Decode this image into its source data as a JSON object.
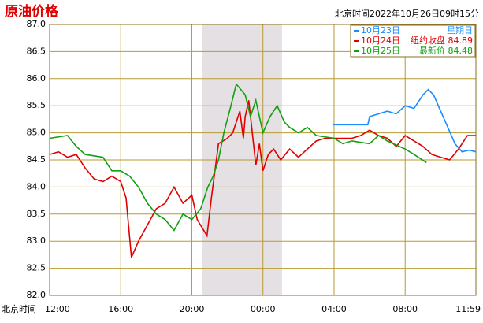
{
  "chart_data": {
    "type": "line",
    "title": "原油价格",
    "subtitle": "北京时间2022年10月26日09时15分",
    "x_label": "北京时间",
    "xlim": [
      0,
      23.98
    ],
    "xticks": [
      {
        "value": 0,
        "label": "12:00"
      },
      {
        "value": 4,
        "label": "16:00"
      },
      {
        "value": 8,
        "label": "20:00"
      },
      {
        "value": 12,
        "label": "00:00"
      },
      {
        "value": 16,
        "label": "04:00"
      },
      {
        "value": 20,
        "label": "08:00"
      },
      {
        "value": 23.98,
        "label": "11:59"
      }
    ],
    "ylim": [
      82,
      87
    ],
    "yticks": [
      {
        "value": 82,
        "label": "82.0"
      },
      82.5,
      {
        "value": 83,
        "label": "83.0"
      },
      83.5,
      {
        "value": 84,
        "label": "84.0"
      },
      84.5,
      {
        "value": 85,
        "label": "85.0"
      },
      85.5,
      {
        "value": 86,
        "label": "86.0"
      },
      86.5,
      {
        "value": 87,
        "label": "87.0"
      }
    ],
    "grid": true,
    "shaded_x": [
      8.58,
      13.07
    ],
    "legend": "upper right",
    "series": [
      {
        "name": "10月23日",
        "note": "星期日",
        "color": "#1a8cff",
        "x": [
          15.95,
          17.9,
          18.0,
          18.5,
          19.0,
          19.5,
          20.0,
          20.5,
          21.0,
          21.3,
          21.6,
          22.0,
          22.4,
          22.8,
          23.2,
          23.6,
          23.98
        ],
        "values": [
          85.15,
          85.15,
          85.3,
          85.35,
          85.4,
          85.35,
          85.5,
          85.45,
          85.7,
          85.8,
          85.7,
          85.4,
          85.1,
          84.8,
          84.65,
          84.68,
          84.65
        ]
      },
      {
        "name": "10月24日",
        "note": "纽约收盘 84.89",
        "color": "#e00000",
        "x": [
          0,
          0.5,
          1,
          1.5,
          2,
          2.5,
          3,
          3.5,
          4,
          4.3,
          4.6,
          5,
          5.5,
          6,
          6.5,
          7,
          7.5,
          8,
          8.3,
          8.85,
          9.1,
          9.5,
          10,
          10.3,
          10.7,
          10.9,
          11,
          11.2,
          11.4,
          11.6,
          11.8,
          12,
          12.3,
          12.6,
          13,
          13.5,
          14,
          14.5,
          15,
          15.5,
          16,
          17,
          17.5,
          18,
          18.5,
          19,
          19.5,
          20,
          20.5,
          21,
          21.5,
          22,
          22.5,
          23,
          23.5,
          23.98
        ],
        "values": [
          84.6,
          84.65,
          84.55,
          84.6,
          84.35,
          84.15,
          84.1,
          84.2,
          84.1,
          83.8,
          82.7,
          83.0,
          83.3,
          83.6,
          83.7,
          84.0,
          83.7,
          83.85,
          83.4,
          83.1,
          83.8,
          84.8,
          84.9,
          85.0,
          85.4,
          84.9,
          85.3,
          85.6,
          85.0,
          84.4,
          84.8,
          84.3,
          84.6,
          84.7,
          84.5,
          84.7,
          84.55,
          84.7,
          84.85,
          84.9,
          84.9,
          84.9,
          84.95,
          85.05,
          84.95,
          84.9,
          84.75,
          84.95,
          84.85,
          84.75,
          84.6,
          84.55,
          84.5,
          84.7,
          84.95,
          84.95
        ]
      },
      {
        "name": "10月25日",
        "note": "最新价 84.48",
        "color": "#10a010",
        "x": [
          0,
          1,
          1.5,
          2,
          3,
          3.5,
          4,
          4.5,
          5,
          5.5,
          6,
          6.5,
          7,
          7.5,
          8,
          8.5,
          8.9,
          9.2,
          9.5,
          9.8,
          10.2,
          10.5,
          11,
          11.3,
          11.6,
          12,
          12.4,
          12.8,
          13.2,
          13.5,
          14,
          14.5,
          15,
          16,
          16.5,
          17,
          18,
          18.5,
          19,
          20,
          20.5,
          21.2
        ],
        "values": [
          84.9,
          84.95,
          84.75,
          84.6,
          84.55,
          84.3,
          84.3,
          84.2,
          84.0,
          83.7,
          83.5,
          83.4,
          83.2,
          83.5,
          83.4,
          83.6,
          84.0,
          84.2,
          84.5,
          85.0,
          85.5,
          85.9,
          85.7,
          85.3,
          85.6,
          85.0,
          85.3,
          85.5,
          85.2,
          85.1,
          85.0,
          85.1,
          84.95,
          84.9,
          84.8,
          84.85,
          84.8,
          84.95,
          84.85,
          84.7,
          84.6,
          84.45
        ]
      }
    ]
  }
}
